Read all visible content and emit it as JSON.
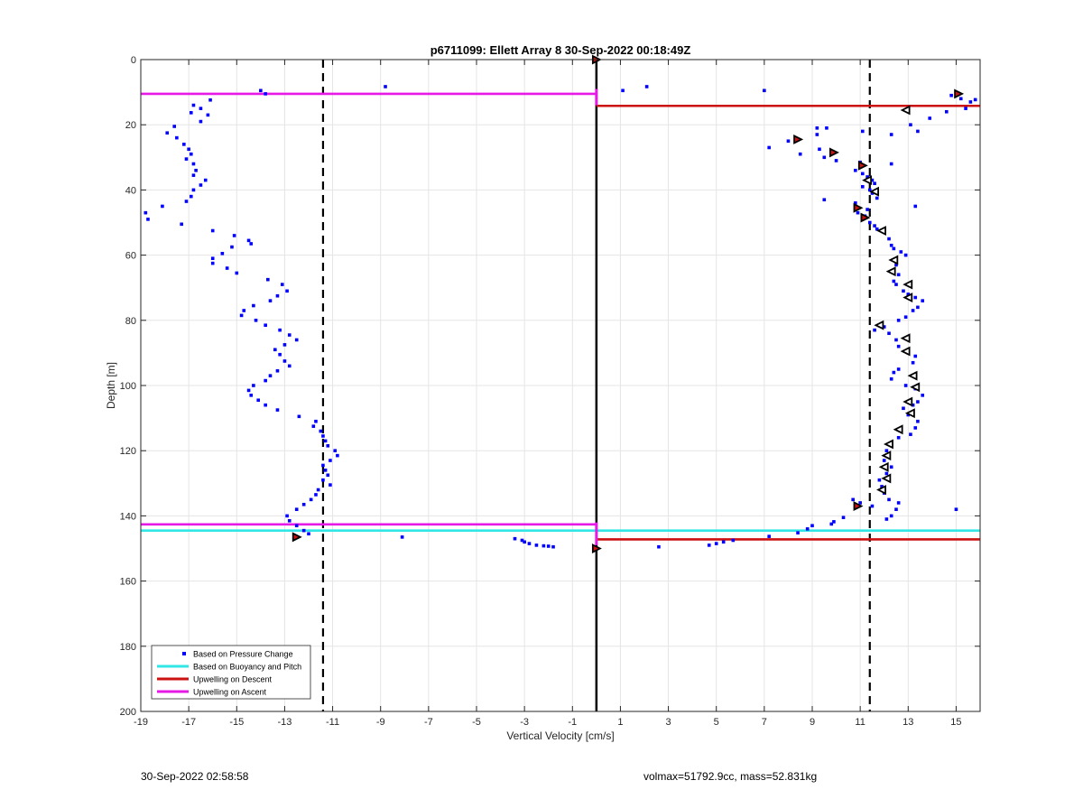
{
  "chart_data": {
    "type": "scatter",
    "title": "p6711099: Ellett Array 8 30-Sep-2022 00:18:49Z",
    "xlabel": "Vertical Velocity [cm/s]",
    "ylabel": "Depth [m]",
    "xlim": [
      -19,
      16
    ],
    "ylim": [
      0,
      200
    ],
    "y_reversed": true,
    "grid": true,
    "xticks": [
      -19,
      -17,
      -15,
      -13,
      -11,
      -9,
      -7,
      -5,
      -3,
      -1,
      1,
      3,
      5,
      7,
      9,
      11,
      13,
      15
    ],
    "yticks": [
      0,
      20,
      40,
      60,
      80,
      100,
      120,
      140,
      160,
      180,
      200
    ],
    "legend": {
      "location": "bottom-left",
      "entries": [
        {
          "label": "Based on Pressure Change",
          "color": "#0000ff",
          "marker": "dot"
        },
        {
          "label": "Based on Buoyancy and Pitch",
          "color": "#33e6e6",
          "marker": "line"
        },
        {
          "label": "Upwelling on Descent",
          "color": "#cc1111",
          "marker": "line"
        },
        {
          "label": "Upwelling on Ascent",
          "color": "#e619e6",
          "marker": "line"
        }
      ]
    },
    "dashed_verticals": [
      -11.4,
      11.4
    ],
    "zero_line": 0,
    "hlines": [
      {
        "series": "Upwelling on Ascent",
        "x0": -19,
        "x1": 0,
        "y": 10.5,
        "color": "#e619e6"
      },
      {
        "series": "Upwelling on Descent",
        "x0": 0,
        "x1": 16,
        "y": 14.2,
        "color": "#cc1111"
      },
      {
        "series": "Upwelling on Ascent",
        "x0": -19,
        "x1": 0,
        "y": 142.6,
        "color": "#e619e6"
      },
      {
        "series": "Based on Buoyancy and Pitch",
        "x0": -19,
        "x1": 16,
        "y": 144.5,
        "color": "#33e6e6"
      },
      {
        "series": "Upwelling on Descent",
        "x0": 0,
        "x1": 16,
        "y": 147.2,
        "color": "#cc1111"
      }
    ],
    "series": [
      {
        "name": "Based on Pressure Change",
        "color": "#0000ff",
        "points": [
          [
            -14,
            9.5
          ],
          [
            -13.8,
            10.5
          ],
          [
            -8.8,
            8.3
          ],
          [
            -16.1,
            12.4
          ],
          [
            -16.8,
            14
          ],
          [
            -16.5,
            15
          ],
          [
            -16.9,
            16.3
          ],
          [
            -16.2,
            17
          ],
          [
            -16.5,
            19
          ],
          [
            -17.6,
            20.5
          ],
          [
            -17.9,
            22.5
          ],
          [
            -17.5,
            24
          ],
          [
            -17.2,
            26
          ],
          [
            -17,
            27.5
          ],
          [
            -16.9,
            29
          ],
          [
            -17.1,
            30.5
          ],
          [
            -16.8,
            32
          ],
          [
            -16.7,
            34
          ],
          [
            -16.8,
            35.5
          ],
          [
            -16.3,
            37
          ],
          [
            -16.5,
            38.5
          ],
          [
            -16.8,
            40
          ],
          [
            -16.9,
            42
          ],
          [
            -17.1,
            43.5
          ],
          [
            -18.1,
            45
          ],
          [
            -18.8,
            47
          ],
          [
            -18.7,
            49
          ],
          [
            -17.3,
            50.5
          ],
          [
            -16,
            52.5
          ],
          [
            -15.1,
            54
          ],
          [
            -14.5,
            55.5
          ],
          [
            -14.4,
            56.5
          ],
          [
            -15.2,
            57.5
          ],
          [
            -15.6,
            59.5
          ],
          [
            -16,
            61
          ],
          [
            -16,
            62.5
          ],
          [
            -15.4,
            64
          ],
          [
            -15,
            65.5
          ],
          [
            -13.7,
            67.5
          ],
          [
            -13.1,
            69
          ],
          [
            -12.9,
            71
          ],
          [
            -13.3,
            72.5
          ],
          [
            -13.6,
            74
          ],
          [
            -14.3,
            75.5
          ],
          [
            -14.7,
            77
          ],
          [
            -14.8,
            78.5
          ],
          [
            -14.2,
            80
          ],
          [
            -13.8,
            81.5
          ],
          [
            -13.2,
            83
          ],
          [
            -12.8,
            84.5
          ],
          [
            -12.5,
            86
          ],
          [
            -13,
            87.5
          ],
          [
            -13.4,
            89
          ],
          [
            -13.2,
            90.5
          ],
          [
            -13,
            92.5
          ],
          [
            -12.8,
            94
          ],
          [
            -13.3,
            95.5
          ],
          [
            -13.6,
            97
          ],
          [
            -13.8,
            98.5
          ],
          [
            -14.3,
            100
          ],
          [
            -14.5,
            101.5
          ],
          [
            -14.4,
            103
          ],
          [
            -14.1,
            104.5
          ],
          [
            -13.8,
            106
          ],
          [
            -13.3,
            107.5
          ],
          [
            -12.4,
            109.5
          ],
          [
            -11.7,
            111
          ],
          [
            -11.8,
            112.5
          ],
          [
            -11.5,
            114
          ],
          [
            -11.4,
            115.5
          ],
          [
            -11.3,
            117
          ],
          [
            -11.2,
            118.5
          ],
          [
            -10.9,
            120
          ],
          [
            -10.8,
            121.5
          ],
          [
            -11.1,
            123
          ],
          [
            -11.4,
            124.5
          ],
          [
            -11.3,
            126
          ],
          [
            -11.2,
            127.5
          ],
          [
            -11.4,
            129
          ],
          [
            -11.1,
            130.5
          ],
          [
            -11.6,
            132
          ],
          [
            -11.7,
            133.5
          ],
          [
            -11.9,
            135
          ],
          [
            -12.2,
            136.5
          ],
          [
            -12.5,
            138
          ],
          [
            -12.9,
            140
          ],
          [
            -12.8,
            141.5
          ],
          [
            -12.5,
            143
          ],
          [
            -12.2,
            144.5
          ],
          [
            -12.0,
            145.5
          ],
          [
            -8.1,
            146.5
          ],
          [
            -3.4,
            147
          ],
          [
            -3.1,
            147.5
          ],
          [
            -3,
            148
          ],
          [
            -2.8,
            148.5
          ],
          [
            -2.5,
            149
          ],
          [
            -2.2,
            149.2
          ],
          [
            -1.8,
            149.5
          ],
          [
            -2,
            149.3
          ],
          [
            2.6,
            149.5
          ],
          [
            4.7,
            149
          ],
          [
            5,
            148.5
          ],
          [
            5.3,
            148
          ],
          [
            5.7,
            147.5
          ],
          [
            7.2,
            146.3
          ],
          [
            8.4,
            145.2
          ],
          [
            8.8,
            144
          ],
          [
            9,
            143
          ],
          [
            9.8,
            142.5
          ],
          [
            9.9,
            141.8
          ],
          [
            10.3,
            140.5
          ],
          [
            10.7,
            135
          ],
          [
            11,
            136
          ],
          [
            11.5,
            137
          ],
          [
            1.1,
            9.5
          ],
          [
            2.1,
            8.3
          ],
          [
            7,
            9.5
          ],
          [
            14.8,
            11
          ],
          [
            15.2,
            12
          ],
          [
            15.6,
            13
          ],
          [
            15.8,
            12.3
          ],
          [
            15.4,
            15
          ],
          [
            14.6,
            16
          ],
          [
            13.9,
            18
          ],
          [
            13.1,
            20
          ],
          [
            13.4,
            22
          ],
          [
            12.3,
            23
          ],
          [
            11.1,
            22
          ],
          [
            9.2,
            21
          ],
          [
            9.6,
            21
          ],
          [
            9.2,
            23
          ],
          [
            8,
            25
          ],
          [
            7.2,
            27
          ],
          [
            9.3,
            27.5
          ],
          [
            8.5,
            29
          ],
          [
            9.5,
            30
          ],
          [
            10,
            31
          ],
          [
            11,
            31.5
          ],
          [
            12.3,
            32
          ],
          [
            10.8,
            34
          ],
          [
            11.1,
            35
          ],
          [
            11.3,
            36
          ],
          [
            11.5,
            37
          ],
          [
            11.6,
            38
          ],
          [
            11.1,
            39
          ],
          [
            11.4,
            40
          ],
          [
            11.5,
            41
          ],
          [
            11.7,
            42.5
          ],
          [
            9.5,
            43
          ],
          [
            10.8,
            44
          ],
          [
            11.3,
            46
          ],
          [
            13.3,
            45
          ],
          [
            10.9,
            47
          ],
          [
            11.2,
            48
          ],
          [
            11.4,
            50
          ],
          [
            11.6,
            51
          ],
          [
            11.7,
            52
          ],
          [
            12,
            53
          ],
          [
            12.2,
            55
          ],
          [
            12.3,
            57
          ],
          [
            12.4,
            58
          ],
          [
            12.7,
            59
          ],
          [
            12.9,
            60
          ],
          [
            12.5,
            63
          ],
          [
            12.3,
            65
          ],
          [
            12.6,
            66
          ],
          [
            12.4,
            68
          ],
          [
            12.5,
            69
          ],
          [
            12.8,
            71
          ],
          [
            13,
            72
          ],
          [
            13.3,
            73
          ],
          [
            13.6,
            74
          ],
          [
            13.4,
            76
          ],
          [
            13.2,
            77
          ],
          [
            12.9,
            79
          ],
          [
            12.6,
            80
          ],
          [
            12,
            82
          ],
          [
            11.6,
            83
          ],
          [
            12.2,
            84
          ],
          [
            12.5,
            86
          ],
          [
            12.6,
            88
          ],
          [
            13,
            90
          ],
          [
            13.3,
            91
          ],
          [
            13.2,
            93
          ],
          [
            12.6,
            95
          ],
          [
            12.4,
            96
          ],
          [
            12.3,
            98
          ],
          [
            12.9,
            100
          ],
          [
            13.3,
            101
          ],
          [
            13.6,
            103
          ],
          [
            13.4,
            105
          ],
          [
            13.2,
            106
          ],
          [
            12.8,
            107
          ],
          [
            13,
            109
          ],
          [
            13.4,
            111
          ],
          [
            13.3,
            113
          ],
          [
            13.1,
            115
          ],
          [
            12.6,
            116
          ],
          [
            12.2,
            118
          ],
          [
            12.1,
            120
          ],
          [
            12,
            123
          ],
          [
            12.3,
            125
          ],
          [
            12.1,
            127
          ],
          [
            11.8,
            129
          ],
          [
            11.9,
            131
          ],
          [
            12,
            133
          ],
          [
            12.2,
            135
          ],
          [
            12.6,
            136
          ],
          [
            12.5,
            138
          ],
          [
            12.3,
            140
          ],
          [
            12.1,
            141
          ],
          [
            15,
            138
          ]
        ]
      },
      {
        "name": "Descent markers",
        "color": "#cc1111",
        "points": [
          [
            0,
            0
          ],
          [
            15.1,
            10.5
          ],
          [
            8.4,
            24.5
          ],
          [
            9.9,
            28.5
          ],
          [
            11.1,
            32.5
          ],
          [
            10.9,
            45.5
          ],
          [
            11.2,
            48.5
          ],
          [
            10.9,
            137
          ],
          [
            -12.5,
            146.5
          ],
          [
            0,
            150
          ]
        ]
      },
      {
        "name": "Ascent markers",
        "color": "#000000",
        "points": [
          [
            12.9,
            15.5
          ],
          [
            11.3,
            37
          ],
          [
            11.6,
            40.5
          ],
          [
            11.9,
            52.5
          ],
          [
            12.4,
            61.5
          ],
          [
            12.3,
            65
          ],
          [
            13,
            69
          ],
          [
            13,
            73
          ],
          [
            11.8,
            81.5
          ],
          [
            12.9,
            85.5
          ],
          [
            12.9,
            89.5
          ],
          [
            13.2,
            97
          ],
          [
            13.3,
            100.5
          ],
          [
            13,
            105
          ],
          [
            13.1,
            108.5
          ],
          [
            12.6,
            113.5
          ],
          [
            12.2,
            118
          ],
          [
            12.1,
            121.5
          ],
          [
            12,
            125
          ],
          [
            12.1,
            128.5
          ],
          [
            11.9,
            132
          ]
        ]
      }
    ]
  },
  "footer": {
    "left": "30-Sep-2022 02:58:58",
    "right": "volmax=51792.9cc, mass=52.831kg"
  }
}
